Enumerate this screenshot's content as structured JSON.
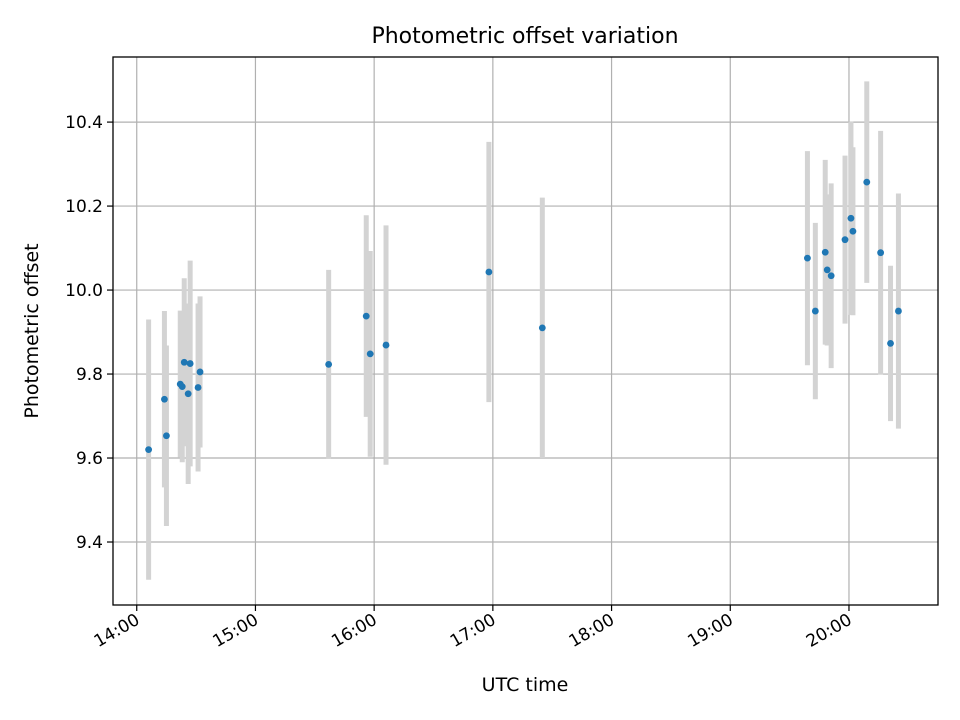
{
  "chart_data": {
    "type": "scatter",
    "title": "Photometric offset variation",
    "xlabel": "UTC time",
    "ylabel": "Photometric offset",
    "xlim": [
      "13:48",
      "20:45"
    ],
    "ylim": [
      9.25,
      10.555
    ],
    "x_ticks": [
      "14:00",
      "15:00",
      "16:00",
      "17:00",
      "18:00",
      "19:00",
      "20:00"
    ],
    "y_ticks": [
      9.4,
      9.6,
      9.8,
      10.0,
      10.2,
      10.4
    ],
    "y_tick_labels": [
      "9.4",
      "9.6",
      "9.8",
      "10.0",
      "10.2",
      "10.4"
    ],
    "grid": true,
    "colors": {
      "marker": "#1f77b4",
      "errorbar": "#d3d3d3"
    },
    "series": [
      {
        "points": [
          {
            "t": "14:06",
            "y": 9.62,
            "err": 0.31
          },
          {
            "t": "14:14",
            "y": 9.74,
            "err": 0.21
          },
          {
            "t": "14:15",
            "y": 9.653,
            "err": 0.215
          },
          {
            "t": "14:22",
            "y": 9.776,
            "err": 0.175
          },
          {
            "t": "14:23",
            "y": 9.77,
            "err": 0.18
          },
          {
            "t": "14:24",
            "y": 9.828,
            "err": 0.2
          },
          {
            "t": "14:26",
            "y": 9.753,
            "err": 0.215
          },
          {
            "t": "14:27",
            "y": 9.825,
            "err": 0.245
          },
          {
            "t": "14:31",
            "y": 9.768,
            "err": 0.2
          },
          {
            "t": "14:32",
            "y": 9.805,
            "err": 0.18
          },
          {
            "t": "15:37",
            "y": 9.823,
            "err": 0.225
          },
          {
            "t": "15:56",
            "y": 9.938,
            "err": 0.24
          },
          {
            "t": "15:58",
            "y": 9.848,
            "err": 0.245
          },
          {
            "t": "16:06",
            "y": 9.869,
            "err": 0.285
          },
          {
            "t": "16:58",
            "y": 10.043,
            "err": 0.31
          },
          {
            "t": "17:25",
            "y": 9.91,
            "err": 0.31
          },
          {
            "t": "19:39",
            "y": 10.076,
            "err": 0.255
          },
          {
            "t": "19:43",
            "y": 9.95,
            "err": 0.21
          },
          {
            "t": "19:48",
            "y": 10.09,
            "err": 0.22
          },
          {
            "t": "19:49",
            "y": 10.048,
            "err": 0.18
          },
          {
            "t": "19:51",
            "y": 10.034,
            "err": 0.22
          },
          {
            "t": "19:58",
            "y": 10.12,
            "err": 0.2
          },
          {
            "t": "20:01",
            "y": 10.171,
            "err": 0.23
          },
          {
            "t": "20:02",
            "y": 10.14,
            "err": 0.2
          },
          {
            "t": "20:09",
            "y": 10.257,
            "err": 0.24
          },
          {
            "t": "20:16",
            "y": 10.089,
            "err": 0.29
          },
          {
            "t": "20:21",
            "y": 9.873,
            "err": 0.185
          },
          {
            "t": "20:25",
            "y": 9.95,
            "err": 0.28
          }
        ]
      }
    ]
  }
}
